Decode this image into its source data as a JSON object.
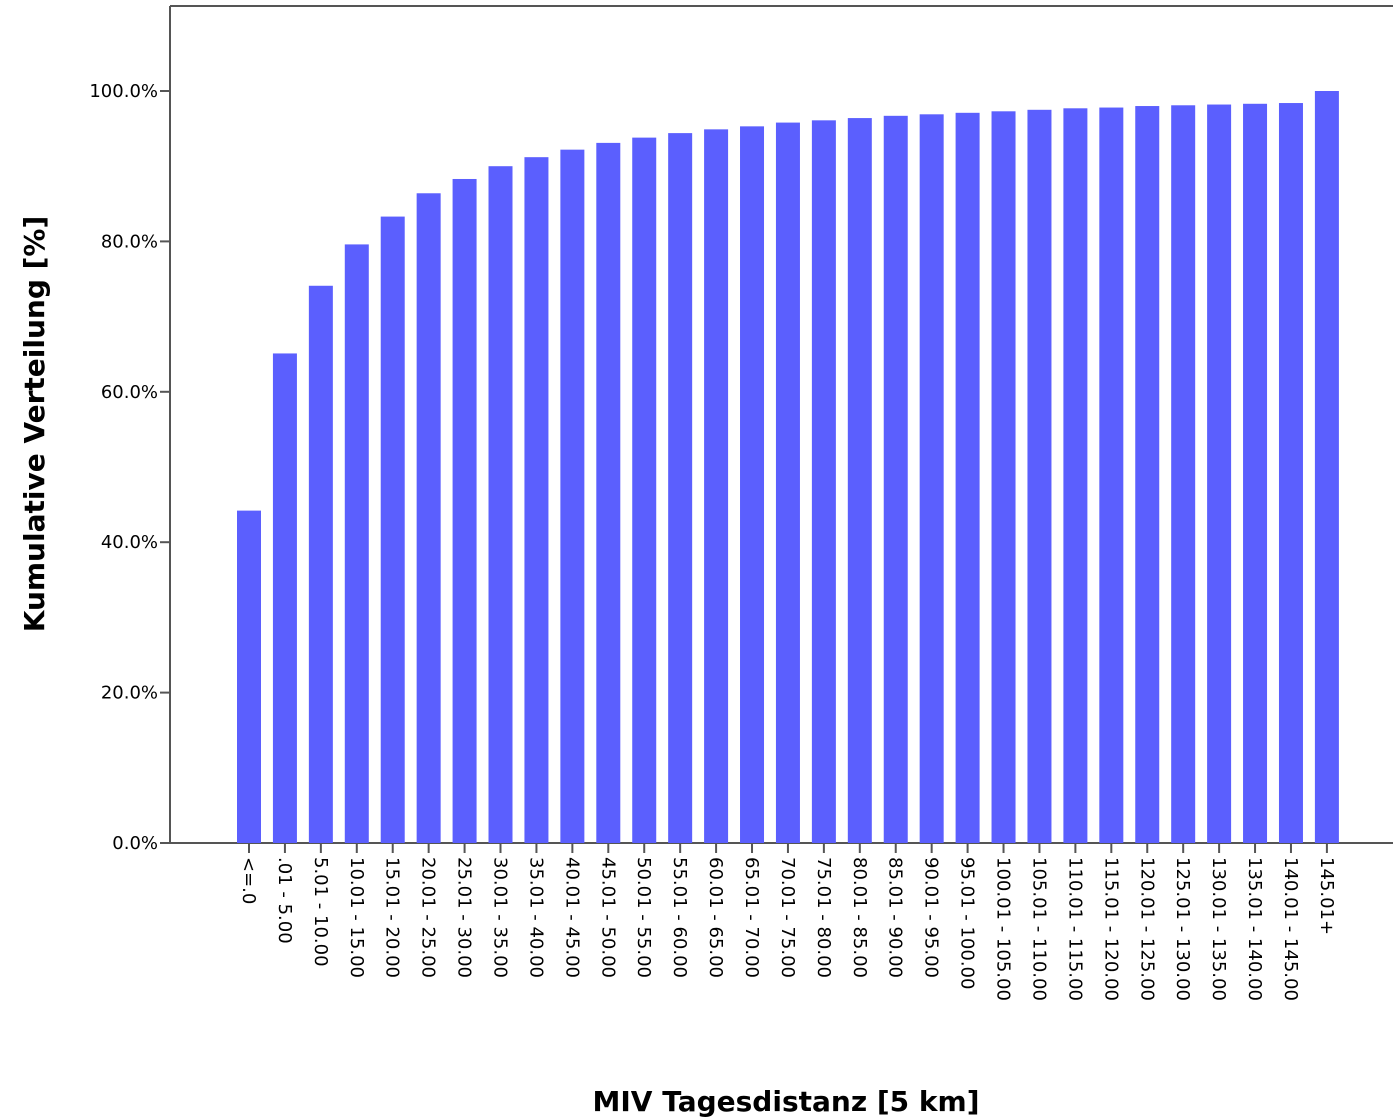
{
  "chart_data": {
    "type": "bar",
    "xlabel": "MIV Tagesdistanz [5 km]",
    "ylabel": "Kumulative Verteilung [%]",
    "ylim": [
      0,
      100
    ],
    "yticks": [
      "0.0%",
      "20.0%",
      "40.0%",
      "60.0%",
      "80.0%",
      "100.0%"
    ],
    "ytick_values": [
      0,
      20,
      40,
      60,
      80,
      100
    ],
    "grid": false,
    "bar_color": "#5b5ffe",
    "categories": [
      "<=.0",
      ".01 - 5.00",
      "5.01 - 10.00",
      "10.01 - 15.00",
      "15.01 - 20.00",
      "20.01 - 25.00",
      "25.01 - 30.00",
      "30.01 - 35.00",
      "35.01 - 40.00",
      "40.01 - 45.00",
      "45.01 - 50.00",
      "50.01 - 55.00",
      "55.01 - 60.00",
      "60.01 - 65.00",
      "65.01 - 70.00",
      "70.01 - 75.00",
      "75.01 - 80.00",
      "80.01 - 85.00",
      "85.01 - 90.00",
      "90.01 - 95.00",
      "95.01 - 100.00",
      "100.01 - 105.00",
      "105.01 - 110.00",
      "110.01 - 115.00",
      "115.01 - 120.00",
      "120.01 - 125.00",
      "125.01 - 130.00",
      "130.01 - 135.00",
      "135.01 - 140.00",
      "140.01 - 145.00",
      "145.01+"
    ],
    "values": [
      44.2,
      65.1,
      74.1,
      79.6,
      83.3,
      86.4,
      88.3,
      90.0,
      91.2,
      92.2,
      93.1,
      93.8,
      94.4,
      94.9,
      95.3,
      95.8,
      96.1,
      96.4,
      96.7,
      96.9,
      97.1,
      97.3,
      97.5,
      97.7,
      97.8,
      98.0,
      98.1,
      98.2,
      98.3,
      98.4,
      100.0
    ]
  }
}
